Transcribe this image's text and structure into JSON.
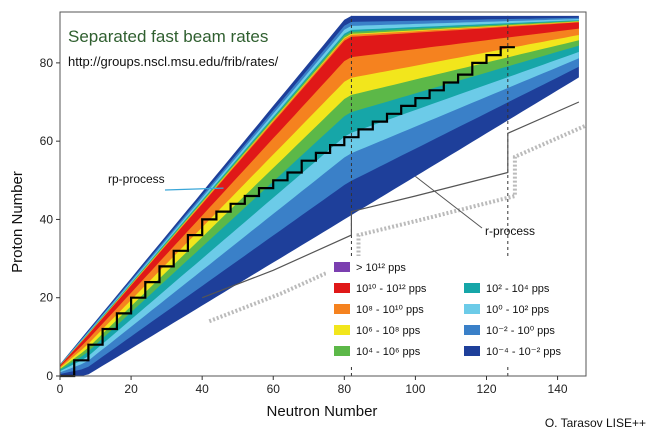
{
  "chart_data": {
    "type": "heatmap",
    "title": "Separated fast beam rates",
    "subtitle": "http://groups.nscl.msu.edu/frib/rates/",
    "xlabel": "Neutron Number",
    "ylabel": "Proton Number",
    "xlim": [
      0,
      148
    ],
    "ylim": [
      0,
      93
    ],
    "xticks": [
      0,
      20,
      40,
      60,
      80,
      100,
      120,
      140
    ],
    "yticks": [
      0,
      20,
      40,
      60,
      80
    ],
    "magic_numbers": {
      "neutron": [
        82,
        126
      ]
    },
    "legend": {
      "placement": "bottom-right",
      "entries": [
        {
          "label": "> 10¹² pps",
          "color": "#7b3fb0"
        },
        {
          "label": "10¹⁰ - 10¹² pps",
          "color": "#e01818"
        },
        {
          "label": "10⁸ - 10¹⁰ pps",
          "color": "#f5821f"
        },
        {
          "label": "10⁶ - 10⁸ pps",
          "color": "#f2e61c"
        },
        {
          "label": "10⁴ - 10⁶ pps",
          "color": "#5cb848"
        },
        {
          "label": "10² - 10⁴ pps",
          "color": "#16a6a8"
        },
        {
          "label": "10⁰ - 10² pps",
          "color": "#6ccbe8"
        },
        {
          "label": "10⁻² - 10⁰ pps",
          "color": "#3a80c8"
        },
        {
          "label": "10⁻⁴ - 10⁻² pps",
          "color": "#1e3f9a"
        }
      ]
    },
    "annotations": [
      {
        "text": "rp-process",
        "x": 46,
        "y": 48
      },
      {
        "text": "r-process",
        "x": 100,
        "y": 51
      }
    ],
    "credit": "O. Tarasov LISE++"
  }
}
